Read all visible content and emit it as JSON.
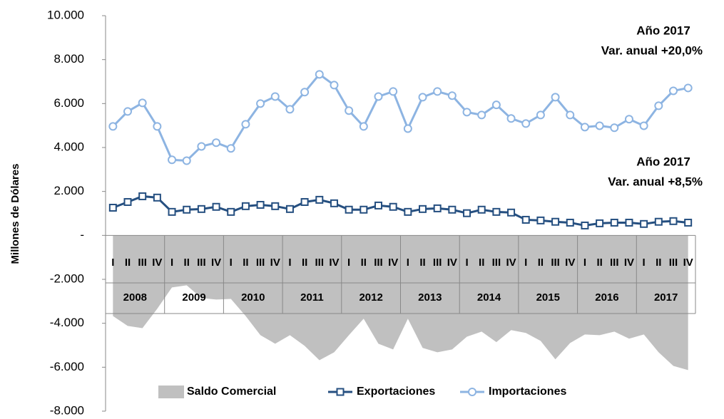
{
  "chart_data": {
    "type": "line",
    "y_axis_label": "Millones de Dólares",
    "categories": [
      "I",
      "II",
      "III",
      "IV",
      "I",
      "II",
      "III",
      "IV",
      "I",
      "II",
      "III",
      "IV",
      "I",
      "II",
      "III",
      "IV",
      "I",
      "II",
      "III",
      "IV",
      "I",
      "II",
      "III",
      "IV",
      "I",
      "II",
      "III",
      "IV",
      "I",
      "II",
      "III",
      "IV",
      "I",
      "II",
      "III",
      "IV",
      "I",
      "II",
      "III",
      "IV"
    ],
    "years": [
      "2008",
      "2009",
      "2010",
      "2011",
      "2012",
      "2013",
      "2014",
      "2015",
      "2016",
      "2017"
    ],
    "ylim": [
      -8000,
      10000
    ],
    "yticks": [
      {
        "value": -8000,
        "label": "-8.000"
      },
      {
        "value": -6000,
        "label": "-6.000"
      },
      {
        "value": -4000,
        "label": "-4.000"
      },
      {
        "value": -2000,
        "label": "-2.000"
      },
      {
        "value": 0,
        "label": "-"
      },
      {
        "value": 2000,
        "label": "2.000"
      },
      {
        "value": 4000,
        "label": "4.000"
      },
      {
        "value": 6000,
        "label": "6.000"
      },
      {
        "value": 8000,
        "label": "8.000"
      },
      {
        "value": 10000,
        "label": "10.000"
      }
    ],
    "series": [
      {
        "name": "Saldo Comercial",
        "kind": "area",
        "color": "#c0c0c0",
        "values": [
          -3670,
          -4120,
          -4220,
          -3340,
          -2370,
          -2270,
          -2850,
          -2920,
          -2890,
          -3670,
          -4540,
          -4930,
          -4540,
          -5030,
          -5680,
          -5320,
          -4540,
          -3790,
          -4930,
          -5190,
          -3790,
          -5120,
          -5320,
          -5190,
          -4610,
          -4380,
          -4860,
          -4310,
          -4440,
          -4800,
          -5640,
          -4900,
          -4510,
          -4540,
          -4380,
          -4700,
          -4510,
          -5320,
          -5940,
          -6130
        ]
      },
      {
        "name": "Exportaciones",
        "kind": "line",
        "marker": "square",
        "color": "#254f80",
        "values": [
          1260,
          1520,
          1780,
          1720,
          1070,
          1170,
          1200,
          1300,
          1070,
          1330,
          1390,
          1330,
          1200,
          1520,
          1620,
          1460,
          1170,
          1170,
          1360,
          1300,
          1070,
          1200,
          1230,
          1170,
          1010,
          1170,
          1070,
          1040,
          710,
          680,
          620,
          580,
          450,
          550,
          580,
          580,
          520,
          620,
          650,
          580
        ]
      },
      {
        "name": "Importaciones",
        "kind": "line",
        "marker": "circle",
        "color": "#8db4e2",
        "values": [
          4960,
          5640,
          6030,
          4960,
          3440,
          3400,
          4050,
          4220,
          3960,
          5060,
          6000,
          6320,
          5740,
          6520,
          7330,
          6840,
          5680,
          4960,
          6320,
          6550,
          4860,
          6290,
          6550,
          6360,
          5610,
          5480,
          5940,
          5320,
          5090,
          5480,
          6290,
          5480,
          4930,
          4990,
          4900,
          5290,
          4990,
          5900,
          6580,
          6710
        ]
      }
    ],
    "annotations": [
      [
        "Año 2017",
        "Var. anual +20,0%"
      ],
      [
        "Año 2017",
        "Var. anual +8,5%"
      ]
    ]
  }
}
